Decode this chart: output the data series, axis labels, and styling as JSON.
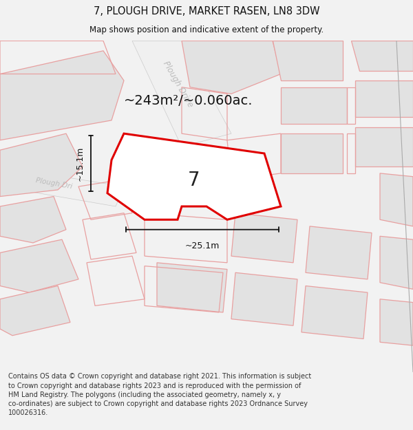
{
  "title_line1": "7, PLOUGH DRIVE, MARKET RASEN, LN8 3DW",
  "title_line2": "Map shows position and indicative extent of the property.",
  "area_text": "~243m²/~0.060ac.",
  "label_7": "7",
  "dim_width": "~25.1m",
  "dim_height": "~15.1m",
  "street_label_1": "Plough Drive",
  "street_label_2": "Plough Dri",
  "footer_text": "Contains OS data © Crown copyright and database right 2021. This information is subject to Crown copyright and database rights 2023 and is reproduced with the permission of HM Land Registry. The polygons (including the associated geometry, namely x, y co-ordinates) are subject to Crown copyright and database rights 2023 Ordnance Survey 100026316.",
  "bg_color": "#f2f2f2",
  "map_bg": "#ffffff",
  "plot_outline_color": "#e00000",
  "bg_polygon_fill": "#e2e2e2",
  "bg_polygon_edge": "#e8a0a0",
  "road_label_color": "#aaaaaa",
  "footer_color": "#333333"
}
